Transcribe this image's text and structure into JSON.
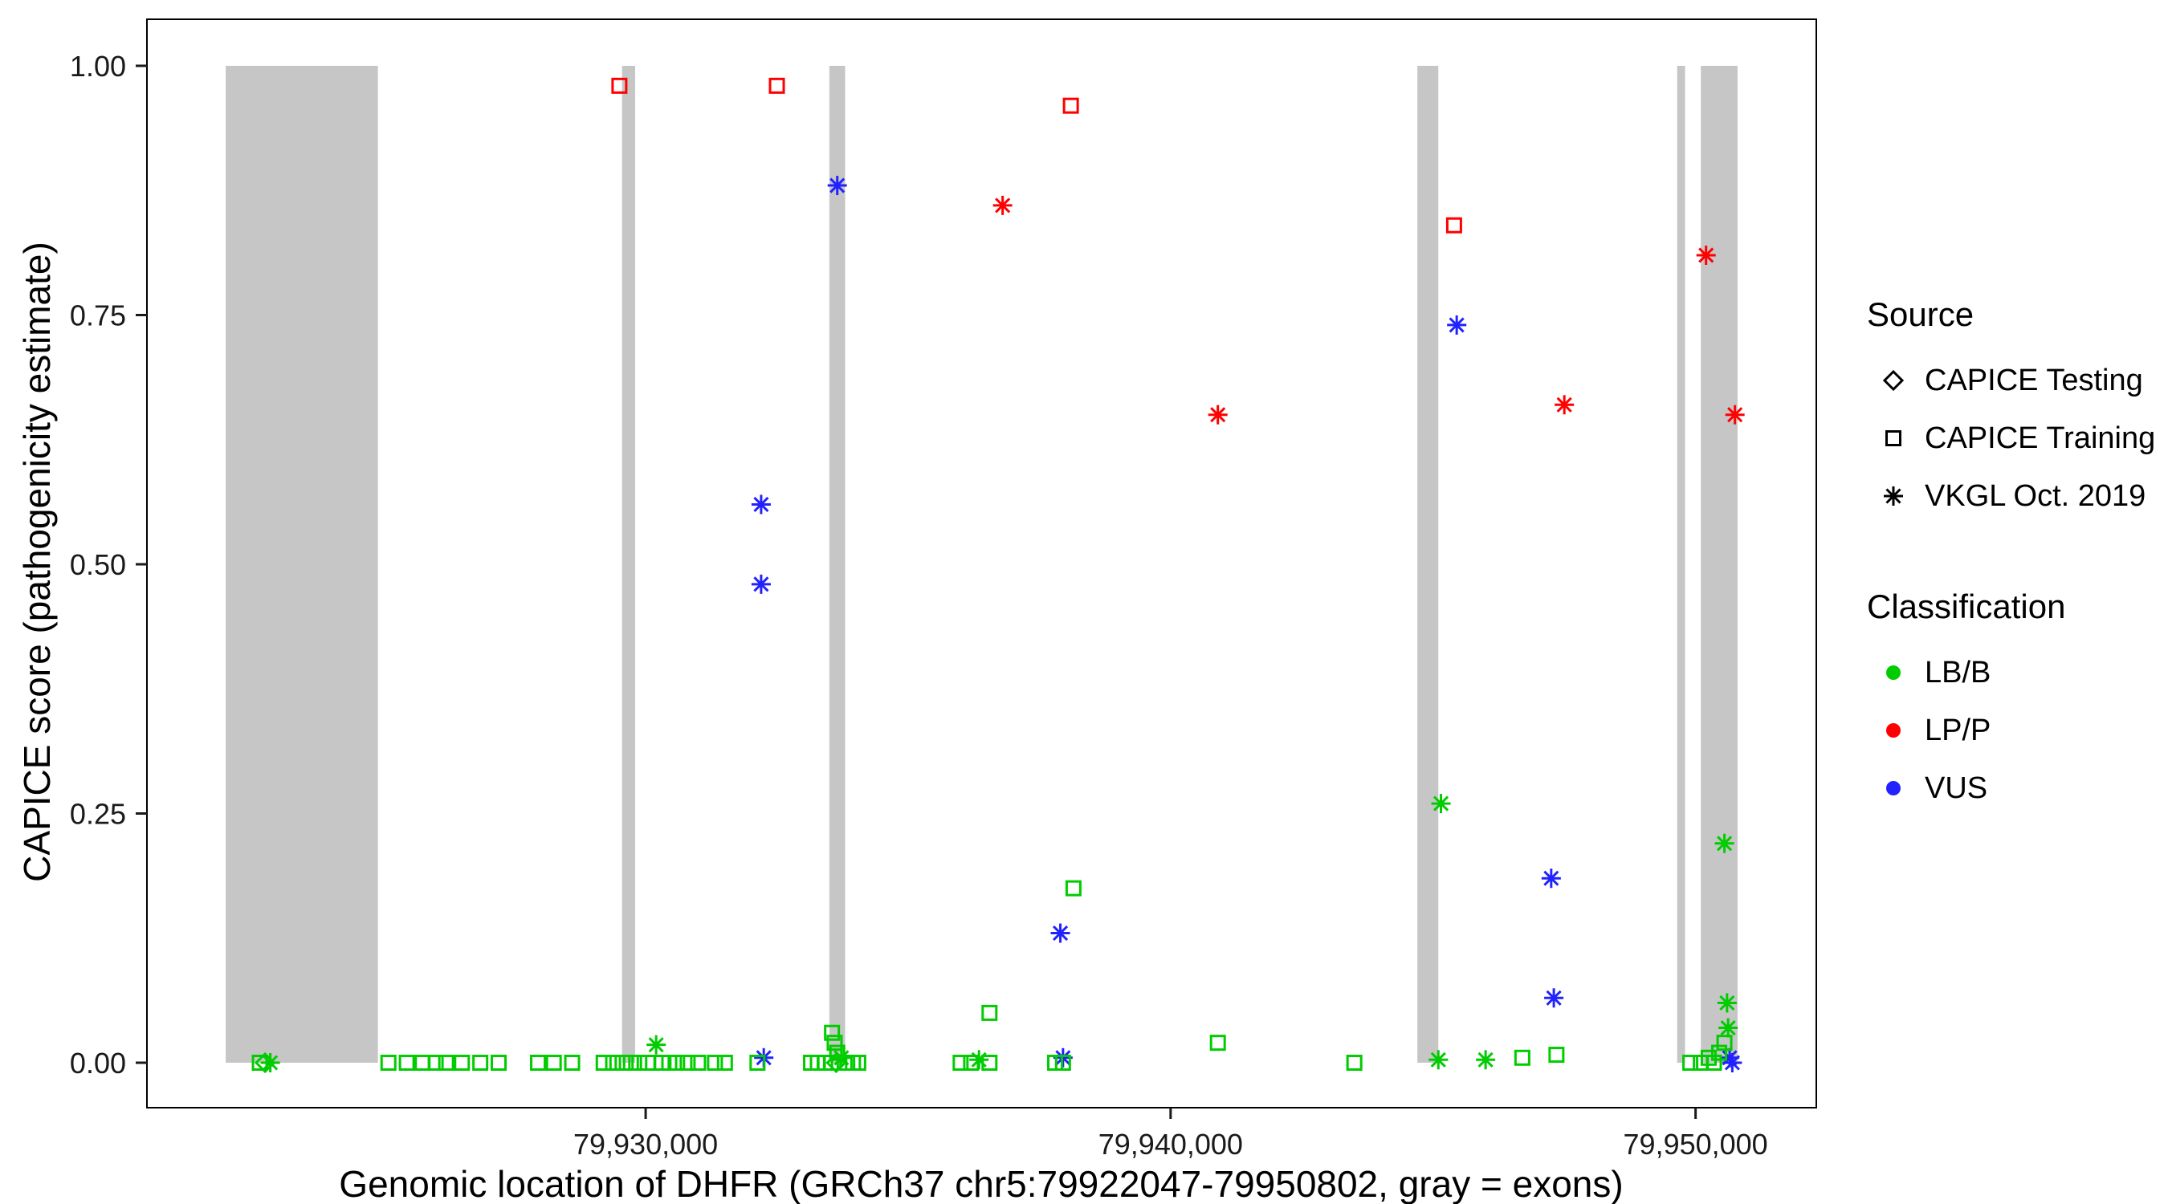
{
  "chart_data": {
    "type": "scatter",
    "title": "",
    "xlabel": "Genomic location of DHFR (GRCh37 chr5:79922047-79950802, gray = exons)",
    "ylabel": "CAPICE score (pathogenicity estimate)",
    "x_domain": [
      79920500,
      79952300
    ],
    "y_domain": [
      -0.045,
      1.045
    ],
    "x_ticks": [
      {
        "value": 79930000,
        "label": "79,930,000"
      },
      {
        "value": 79940000,
        "label": "79,940,000"
      },
      {
        "value": 79950000,
        "label": "79,950,000"
      }
    ],
    "y_ticks": [
      {
        "value": 0.0,
        "label": "0.00"
      },
      {
        "value": 0.25,
        "label": "0.25"
      },
      {
        "value": 0.5,
        "label": "0.50"
      },
      {
        "value": 0.75,
        "label": "0.75"
      },
      {
        "value": 1.0,
        "label": "1.00"
      }
    ],
    "grid": false,
    "exon_color": "#c6c6c6",
    "exons": [
      [
        79922000,
        79924900
      ],
      [
        79929550,
        79929800
      ],
      [
        79933500,
        79933800
      ],
      [
        79944700,
        79945100
      ],
      [
        79949650,
        79949800
      ],
      [
        79950100,
        79950800
      ]
    ],
    "classification_colors": {
      "LB/B": "#00cc00",
      "LP/P": "#ff0000",
      "VUS": "#2222ff"
    },
    "source_shapes": {
      "CAPICE Testing": "diamond",
      "CAPICE Training": "square",
      "VKGL Oct. 2019": "asterisk"
    },
    "points_columns": [
      "position",
      "score",
      "classification",
      "source"
    ],
    "points": [
      [
        79929500,
        0.98,
        "LP/P",
        "CAPICE Training"
      ],
      [
        79932500,
        0.98,
        "LP/P",
        "CAPICE Training"
      ],
      [
        79938100,
        0.96,
        "LP/P",
        "CAPICE Training"
      ],
      [
        79945400,
        0.84,
        "LP/P",
        "CAPICE Training"
      ],
      [
        79936800,
        0.86,
        "LP/P",
        "VKGL Oct. 2019"
      ],
      [
        79940900,
        0.65,
        "LP/P",
        "VKGL Oct. 2019"
      ],
      [
        79947500,
        0.66,
        "LP/P",
        "VKGL Oct. 2019"
      ],
      [
        79950200,
        0.81,
        "LP/P",
        "VKGL Oct. 2019"
      ],
      [
        79950750,
        0.65,
        "LP/P",
        "VKGL Oct. 2019"
      ],
      [
        79933650,
        0.88,
        "VUS",
        "VKGL Oct. 2019"
      ],
      [
        79932200,
        0.56,
        "VUS",
        "VKGL Oct. 2019"
      ],
      [
        79932200,
        0.48,
        "VUS",
        "VKGL Oct. 2019"
      ],
      [
        79945450,
        0.74,
        "VUS",
        "VKGL Oct. 2019"
      ],
      [
        79947250,
        0.185,
        "VUS",
        "VKGL Oct. 2019"
      ],
      [
        79947300,
        0.065,
        "VUS",
        "VKGL Oct. 2019"
      ],
      [
        79937900,
        0.13,
        "VUS",
        "VKGL Oct. 2019"
      ],
      [
        79932250,
        0.005,
        "VUS",
        "VKGL Oct. 2019"
      ],
      [
        79937950,
        0.005,
        "VUS",
        "VKGL Oct. 2019"
      ],
      [
        79950650,
        0.005,
        "VUS",
        "VKGL Oct. 2019"
      ],
      [
        79950700,
        0.0,
        "VUS",
        "VKGL Oct. 2019"
      ],
      [
        79938150,
        0.175,
        "LB/B",
        "CAPICE Training"
      ],
      [
        79936550,
        0.05,
        "LB/B",
        "CAPICE Training"
      ],
      [
        79945150,
        0.26,
        "LB/B",
        "VKGL Oct. 2019"
      ],
      [
        79950550,
        0.22,
        "LB/B",
        "VKGL Oct. 2019"
      ],
      [
        79950600,
        0.06,
        "LB/B",
        "VKGL Oct. 2019"
      ],
      [
        79950620,
        0.035,
        "LB/B",
        "VKGL Oct. 2019"
      ],
      [
        79930200,
        0.018,
        "LB/B",
        "VKGL Oct. 2019"
      ],
      [
        79940900,
        0.02,
        "LB/B",
        "CAPICE Training"
      ],
      [
        79933550,
        0.03,
        "LB/B",
        "CAPICE Training"
      ],
      [
        79933600,
        0.02,
        "LB/B",
        "CAPICE Training"
      ],
      [
        79933650,
        0.01,
        "LB/B",
        "CAPICE Training"
      ],
      [
        79922650,
        0.0,
        "LB/B",
        "CAPICE Training"
      ],
      [
        79922750,
        0.0,
        "LB/B",
        "CAPICE Testing"
      ],
      [
        79922850,
        0.0,
        "LB/B",
        "VKGL Oct. 2019"
      ],
      [
        79925100,
        0.0,
        "LB/B",
        "CAPICE Training"
      ],
      [
        79925450,
        0.0,
        "LB/B",
        "CAPICE Training"
      ],
      [
        79925750,
        0.0,
        "LB/B",
        "CAPICE Training"
      ],
      [
        79926000,
        0.0,
        "LB/B",
        "CAPICE Training"
      ],
      [
        79926200,
        0.0,
        "LB/B",
        "CAPICE Training"
      ],
      [
        79926500,
        0.0,
        "LB/B",
        "CAPICE Training"
      ],
      [
        79926850,
        0.0,
        "LB/B",
        "CAPICE Training"
      ],
      [
        79927200,
        0.0,
        "LB/B",
        "CAPICE Training"
      ],
      [
        79927950,
        0.0,
        "LB/B",
        "CAPICE Training"
      ],
      [
        79928250,
        0.0,
        "LB/B",
        "CAPICE Training"
      ],
      [
        79928600,
        0.0,
        "LB/B",
        "CAPICE Training"
      ],
      [
        79929200,
        0.0,
        "LB/B",
        "CAPICE Training"
      ],
      [
        79929380,
        0.0,
        "LB/B",
        "CAPICE Training"
      ],
      [
        79929560,
        0.0,
        "LB/B",
        "CAPICE Training"
      ],
      [
        79929720,
        0.0,
        "LB/B",
        "CAPICE Training"
      ],
      [
        79929880,
        0.0,
        "LB/B",
        "CAPICE Training"
      ],
      [
        79930040,
        0.0,
        "LB/B",
        "CAPICE Training"
      ],
      [
        79930310,
        0.0,
        "LB/B",
        "CAPICE Training"
      ],
      [
        79930450,
        0.0,
        "LB/B",
        "CAPICE Training"
      ],
      [
        79930600,
        0.0,
        "LB/B",
        "CAPICE Training"
      ],
      [
        79930800,
        0.0,
        "LB/B",
        "CAPICE Training"
      ],
      [
        79931000,
        0.0,
        "LB/B",
        "CAPICE Training"
      ],
      [
        79931320,
        0.0,
        "LB/B",
        "CAPICE Training"
      ],
      [
        79931510,
        0.0,
        "LB/B",
        "CAPICE Training"
      ],
      [
        79932130,
        0.0,
        "LB/B",
        "CAPICE Training"
      ],
      [
        79933150,
        0.0,
        "LB/B",
        "CAPICE Training"
      ],
      [
        79933280,
        0.0,
        "LB/B",
        "CAPICE Training"
      ],
      [
        79933420,
        0.0,
        "LB/B",
        "CAPICE Training"
      ],
      [
        79933530,
        0.0,
        "LB/B",
        "CAPICE Training"
      ],
      [
        79933630,
        0.0,
        "LB/B",
        "CAPICE Testing"
      ],
      [
        79933730,
        0.005,
        "LB/B",
        "VKGL Oct. 2019"
      ],
      [
        79933840,
        0.0,
        "LB/B",
        "CAPICE Training"
      ],
      [
        79933950,
        0.0,
        "LB/B",
        "CAPICE Training"
      ],
      [
        79934050,
        0.0,
        "LB/B",
        "CAPICE Training"
      ],
      [
        79936000,
        0.0,
        "LB/B",
        "CAPICE Training"
      ],
      [
        79936200,
        0.0,
        "LB/B",
        "CAPICE Training"
      ],
      [
        79936350,
        0.003,
        "LB/B",
        "VKGL Oct. 2019"
      ],
      [
        79936550,
        0.0,
        "LB/B",
        "CAPICE Training"
      ],
      [
        79937800,
        0.0,
        "LB/B",
        "CAPICE Training"
      ],
      [
        79937950,
        0.0,
        "LB/B",
        "CAPICE Training"
      ],
      [
        79943500,
        0.0,
        "LB/B",
        "CAPICE Training"
      ],
      [
        79945100,
        0.003,
        "LB/B",
        "VKGL Oct. 2019"
      ],
      [
        79946000,
        0.003,
        "LB/B",
        "VKGL Oct. 2019"
      ],
      [
        79946700,
        0.005,
        "LB/B",
        "CAPICE Training"
      ],
      [
        79947350,
        0.008,
        "LB/B",
        "CAPICE Training"
      ],
      [
        79949900,
        0.0,
        "LB/B",
        "CAPICE Training"
      ],
      [
        79950100,
        0.0,
        "LB/B",
        "CAPICE Training"
      ],
      [
        79950250,
        0.005,
        "LB/B",
        "CAPICE Training"
      ],
      [
        79950350,
        0.0,
        "LB/B",
        "CAPICE Training"
      ],
      [
        79950450,
        0.01,
        "LB/B",
        "CAPICE Training"
      ],
      [
        79950550,
        0.02,
        "LB/B",
        "CAPICE Training"
      ]
    ]
  },
  "legend": {
    "source": {
      "title": "Source",
      "items": [
        {
          "label": "CAPICE Testing",
          "shape": "diamond"
        },
        {
          "label": "CAPICE Training",
          "shape": "square"
        },
        {
          "label": "VKGL Oct. 2019",
          "shape": "asterisk"
        }
      ]
    },
    "classification": {
      "title": "Classification",
      "items": [
        {
          "label": "LB/B",
          "color": "#00cc00"
        },
        {
          "label": "LP/P",
          "color": "#ff0000"
        },
        {
          "label": "VUS",
          "color": "#2222ff"
        }
      ]
    }
  }
}
